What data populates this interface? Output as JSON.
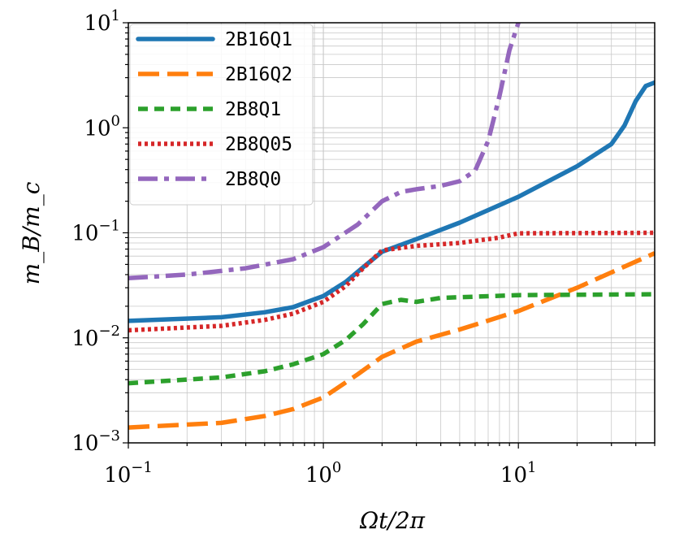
{
  "chart_data": {
    "type": "line",
    "title": "",
    "xlabel": "Ωt/2π",
    "ylabel": "m_B/m_c",
    "xscale": "log",
    "yscale": "log",
    "xlim": [
      0.1,
      50
    ],
    "ylim": [
      0.001,
      10
    ],
    "x_tick_labels": [
      {
        "base": "10",
        "exp": "−1",
        "value": 0.1
      },
      {
        "base": "10",
        "exp": "0",
        "value": 1
      },
      {
        "base": "10",
        "exp": "1",
        "value": 10
      }
    ],
    "y_tick_labels": [
      {
        "base": "10",
        "exp": "−3",
        "value": 0.001
      },
      {
        "base": "10",
        "exp": "−2",
        "value": 0.01
      },
      {
        "base": "10",
        "exp": "−1",
        "value": 0.1
      },
      {
        "base": "10",
        "exp": "0",
        "value": 1
      },
      {
        "base": "10",
        "exp": "1",
        "value": 10
      }
    ],
    "grid": true,
    "legend_position": "upper-left",
    "series": [
      {
        "name": "2B16Q1",
        "color": "#1f77b4",
        "style": "solid",
        "points": [
          [
            0.1,
            0.0145
          ],
          [
            0.3,
            0.0157
          ],
          [
            0.5,
            0.0175
          ],
          [
            0.7,
            0.0196
          ],
          [
            1.0,
            0.025
          ],
          [
            1.3,
            0.034
          ],
          [
            1.6,
            0.047
          ],
          [
            2.0,
            0.066
          ],
          [
            3.0,
            0.087
          ],
          [
            5.0,
            0.125
          ],
          [
            10.0,
            0.22
          ],
          [
            20.0,
            0.43
          ],
          [
            30.0,
            0.7
          ],
          [
            35.0,
            1.05
          ],
          [
            40.0,
            1.8
          ],
          [
            45.0,
            2.5
          ],
          [
            50.0,
            2.7
          ]
        ]
      },
      {
        "name": "2B16Q2",
        "color": "#ff7f0e",
        "style": "dashed",
        "points": [
          [
            0.1,
            0.0014
          ],
          [
            0.3,
            0.00155
          ],
          [
            0.5,
            0.0018
          ],
          [
            0.7,
            0.0021
          ],
          [
            1.0,
            0.0027
          ],
          [
            1.5,
            0.0045
          ],
          [
            2.0,
            0.0066
          ],
          [
            3.0,
            0.0092
          ],
          [
            5.0,
            0.012
          ],
          [
            10.0,
            0.018
          ],
          [
            20.0,
            0.03
          ],
          [
            30.0,
            0.042
          ],
          [
            50.0,
            0.064
          ]
        ]
      },
      {
        "name": "2B8Q1",
        "color": "#2ca02c",
        "style": "dashed-short",
        "points": [
          [
            0.1,
            0.0037
          ],
          [
            0.3,
            0.0042
          ],
          [
            0.5,
            0.0048
          ],
          [
            0.7,
            0.0056
          ],
          [
            1.0,
            0.007
          ],
          [
            1.3,
            0.0095
          ],
          [
            1.6,
            0.0135
          ],
          [
            2.0,
            0.021
          ],
          [
            2.5,
            0.023
          ],
          [
            3.0,
            0.022
          ],
          [
            4.0,
            0.024
          ],
          [
            10.0,
            0.0255
          ],
          [
            50.0,
            0.026
          ]
        ]
      },
      {
        "name": "2B8Q05",
        "color": "#d62728",
        "style": "dotted",
        "points": [
          [
            0.1,
            0.0118
          ],
          [
            0.3,
            0.013
          ],
          [
            0.5,
            0.0148
          ],
          [
            0.7,
            0.017
          ],
          [
            1.0,
            0.022
          ],
          [
            1.3,
            0.031
          ],
          [
            1.6,
            0.046
          ],
          [
            2.0,
            0.068
          ],
          [
            3.0,
            0.075
          ],
          [
            5.0,
            0.08
          ],
          [
            8.0,
            0.09
          ],
          [
            10.0,
            0.099
          ],
          [
            50.0,
            0.1
          ]
        ]
      },
      {
        "name": "2B8Q0",
        "color": "#9467bd",
        "style": "dashdot",
        "points": [
          [
            0.1,
            0.037
          ],
          [
            0.2,
            0.04
          ],
          [
            0.4,
            0.046
          ],
          [
            0.7,
            0.056
          ],
          [
            1.0,
            0.073
          ],
          [
            1.5,
            0.12
          ],
          [
            2.0,
            0.2
          ],
          [
            2.5,
            0.245
          ],
          [
            3.0,
            0.26
          ],
          [
            4.0,
            0.28
          ],
          [
            5.0,
            0.31
          ],
          [
            6.0,
            0.39
          ],
          [
            7.0,
            0.75
          ],
          [
            8.0,
            2.0
          ],
          [
            9.0,
            5.5
          ],
          [
            10.0,
            10.0
          ]
        ]
      }
    ]
  }
}
